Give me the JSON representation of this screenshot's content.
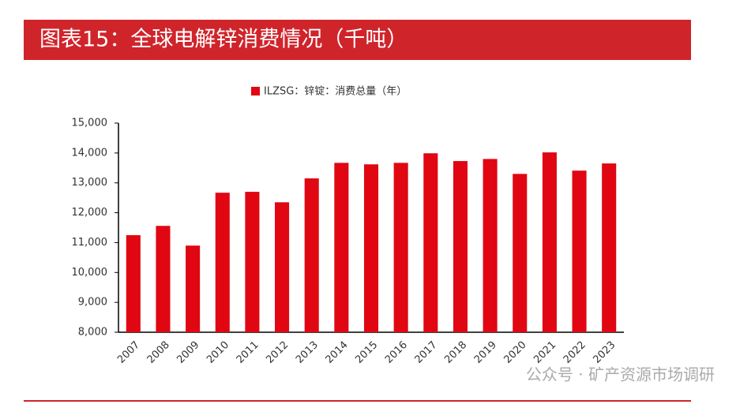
{
  "header": {
    "title": "图表15：全球电解锌消费情况（千吨）"
  },
  "chart_data": {
    "type": "bar",
    "categories": [
      "2007",
      "2008",
      "2009",
      "2010",
      "2011",
      "2012",
      "2013",
      "2014",
      "2015",
      "2016",
      "2017",
      "2018",
      "2019",
      "2020",
      "2021",
      "2022",
      "2023"
    ],
    "series": [
      {
        "name": "ILZSG：锌锭：消费总量（年）",
        "color": "#e00712",
        "values": [
          11250,
          11560,
          10900,
          12670,
          12700,
          12350,
          13150,
          13670,
          13620,
          13670,
          13990,
          13730,
          13800,
          13300,
          14020,
          13410,
          13650
        ]
      }
    ],
    "ylim": [
      8000,
      15000
    ],
    "yticks": [
      {
        "value": 8000,
        "label": "8,000"
      },
      {
        "value": 9000,
        "label": "9,000"
      },
      {
        "value": 10000,
        "label": "10,000"
      },
      {
        "value": 11000,
        "label": "11,000"
      },
      {
        "value": 12000,
        "label": "12,000"
      },
      {
        "value": 13000,
        "label": "13,000"
      },
      {
        "value": 14000,
        "label": "14,000"
      },
      {
        "value": 15000,
        "label": "15,000"
      }
    ],
    "grid": false
  },
  "watermark": "公众号 · 矿产资源市场调研"
}
